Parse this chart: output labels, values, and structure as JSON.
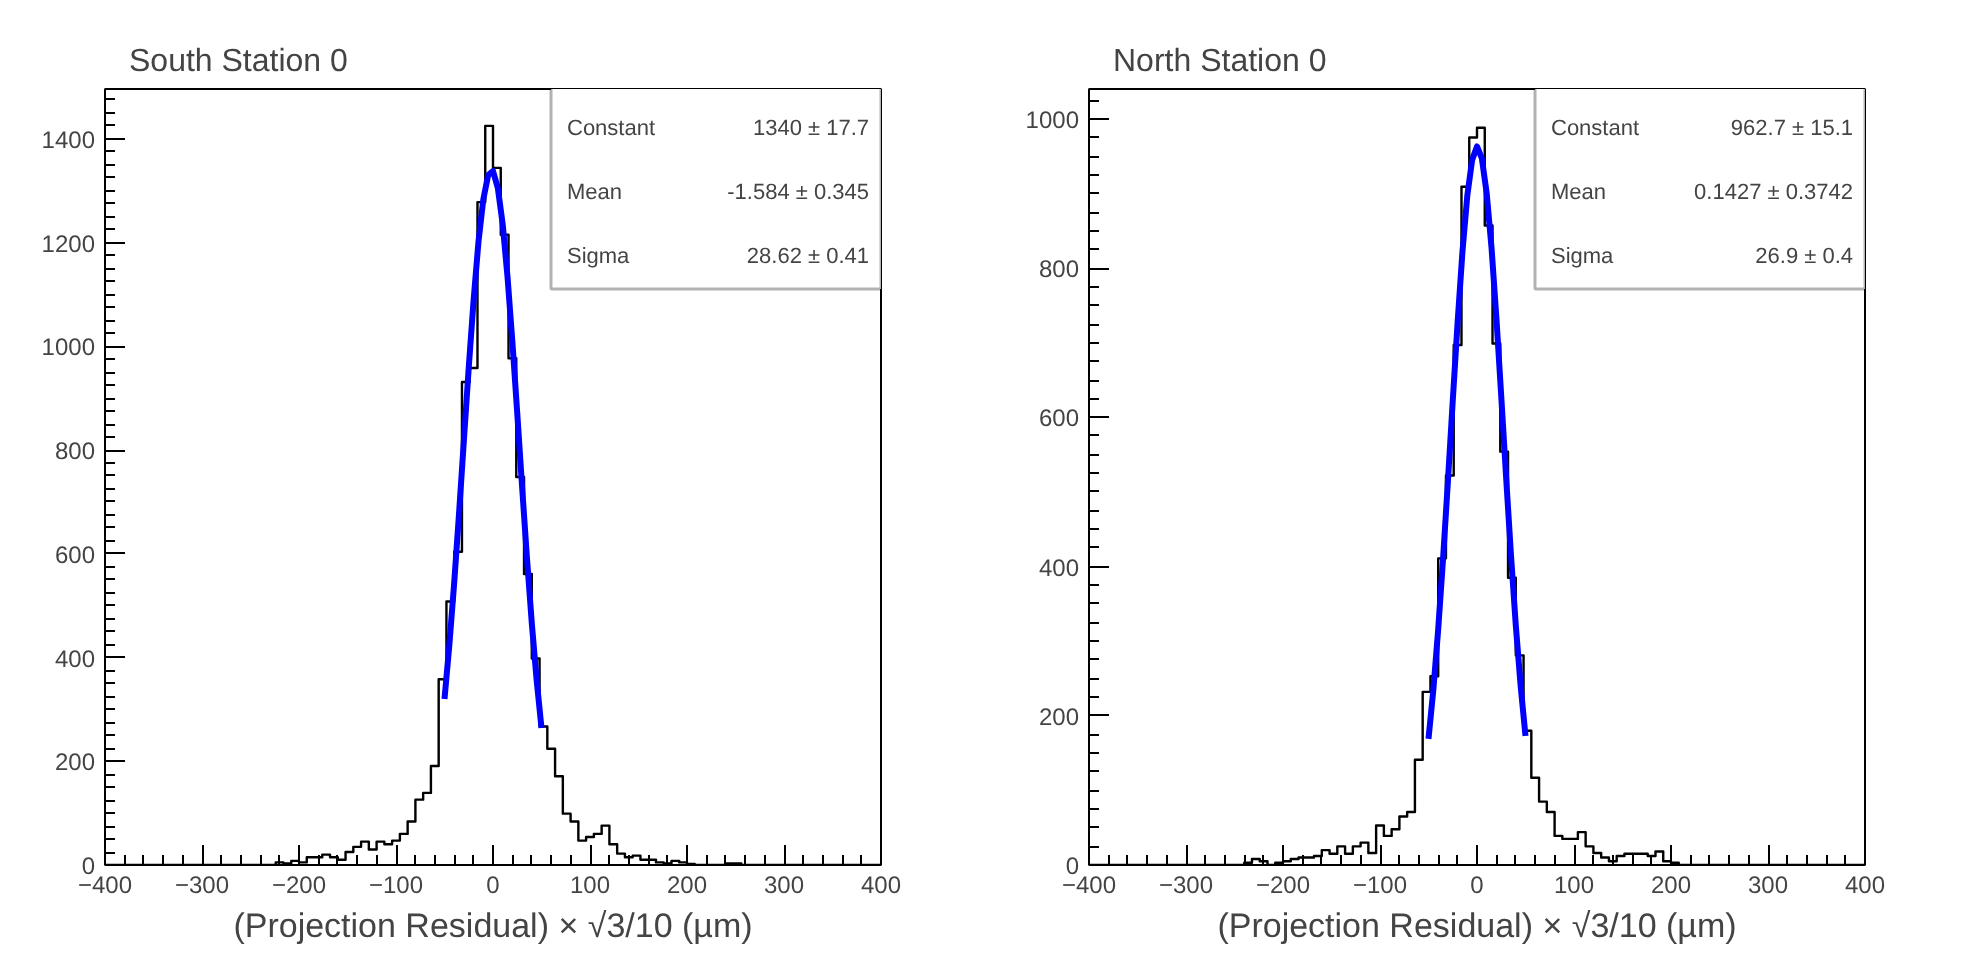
{
  "chart_data": [
    {
      "type": "histogram",
      "title": "South Station 0",
      "xlabel": "(Projection Residual) × √3/10 (µm)",
      "bins": [
        -400,
        -392,
        -384,
        -376,
        -368,
        -360,
        -352,
        -344,
        -336,
        -328,
        -320,
        -312,
        -304,
        -296,
        -288,
        -280,
        -272,
        -264,
        -256,
        -248,
        -240,
        -232,
        -224,
        -216,
        -208,
        -200,
        -192,
        -184,
        -176,
        -168,
        -160,
        -152,
        -144,
        -136,
        -128,
        -120,
        -112,
        -104,
        -96,
        -88,
        -80,
        -72,
        -64,
        -56,
        -48,
        -40,
        -32,
        -24,
        -16,
        -8,
        0,
        8,
        16,
        24,
        32,
        40,
        48,
        56,
        64,
        72,
        80,
        88,
        96,
        104,
        112,
        120,
        128,
        136,
        144,
        152,
        160,
        168,
        176,
        184,
        192,
        200,
        208,
        216,
        224,
        232,
        240,
        248,
        256,
        264,
        272,
        280,
        288,
        296,
        304,
        312,
        320,
        328,
        336,
        344,
        352,
        360,
        368,
        376,
        384,
        392,
        400
      ],
      "values": [
        0,
        0,
        0,
        0,
        0,
        0,
        0,
        0,
        0,
        0,
        0,
        0,
        0,
        0,
        0,
        0,
        0,
        0,
        0,
        0,
        0,
        0,
        5,
        3,
        8,
        5,
        15,
        15,
        20,
        15,
        10,
        25,
        35,
        45,
        30,
        45,
        40,
        47,
        60,
        84,
        126,
        139,
        191,
        358,
        508,
        604,
        931,
        958,
        1278,
        1425,
        1344,
        1215,
        977,
        748,
        561,
        398,
        267,
        224,
        171,
        99,
        84,
        47,
        54,
        60,
        76,
        40,
        22,
        15,
        18,
        10,
        10,
        5,
        3,
        8,
        5,
        2,
        0,
        0,
        0,
        0,
        3,
        3,
        0,
        0,
        0,
        0,
        0,
        0,
        0,
        0,
        0,
        0,
        0,
        0,
        0,
        0,
        0,
        0,
        0,
        0
      ],
      "color": "#000000",
      "series": [
        {
          "type": "line",
          "color": "#0000ff",
          "x": [
            -50,
            -45,
            -40,
            -35,
            -30,
            -25,
            -20,
            -15,
            -10,
            -5,
            0,
            5,
            10,
            15,
            20,
            25,
            30,
            35,
            40,
            45,
            50
          ],
          "values": [
            320,
            424,
            544,
            678,
            819,
            959,
            1089,
            1201,
            1283,
            1330,
            1338,
            1305,
            1235,
            1133,
            1008,
            871,
            729,
            592,
            466,
            356,
            264
          ]
        }
      ],
      "xlim": [
        -400,
        400
      ],
      "xticks": [
        -400,
        -300,
        -200,
        -100,
        0,
        100,
        200,
        300,
        400
      ],
      "ylim": [
        0,
        1496
      ],
      "yticks": [
        0,
        200,
        400,
        600,
        800,
        1000,
        1200,
        1400
      ],
      "grid": false,
      "annotations": [
        "Constant",
        "1340 ± 17.7",
        "Mean",
        "-1.584 ± 0.345",
        "Sigma",
        "28.62 ± 0.41"
      ]
    },
    {
      "type": "histogram",
      "title": "North Station 0",
      "xlabel": "(Projection Residual) × √3/10 (µm)",
      "bins": [
        -400,
        -392,
        -384,
        -376,
        -368,
        -360,
        -352,
        -344,
        -336,
        -328,
        -320,
        -312,
        -304,
        -296,
        -288,
        -280,
        -272,
        -264,
        -256,
        -248,
        -240,
        -232,
        -224,
        -216,
        -208,
        -200,
        -192,
        -184,
        -176,
        -168,
        -160,
        -152,
        -144,
        -136,
        -128,
        -120,
        -112,
        -104,
        -96,
        -88,
        -80,
        -72,
        -64,
        -56,
        -48,
        -40,
        -32,
        -24,
        -16,
        -8,
        0,
        8,
        16,
        24,
        32,
        40,
        48,
        56,
        64,
        72,
        80,
        88,
        96,
        104,
        112,
        120,
        128,
        136,
        144,
        152,
        160,
        168,
        176,
        184,
        192,
        200,
        208,
        216,
        224,
        232,
        240,
        248,
        256,
        264,
        272,
        280,
        288,
        296,
        304,
        312,
        320,
        328,
        336,
        344,
        352,
        360,
        368,
        376,
        384,
        392,
        400
      ],
      "values": [
        0,
        0,
        0,
        0,
        0,
        0,
        0,
        0,
        0,
        0,
        0,
        0,
        0,
        0,
        0,
        0,
        0,
        0,
        0,
        0,
        3,
        8,
        5,
        0,
        3,
        5,
        8,
        10,
        10,
        12,
        20,
        15,
        25,
        15,
        25,
        30,
        16,
        53,
        39,
        48,
        65,
        71,
        141,
        232,
        253,
        411,
        522,
        697,
        909,
        975,
        988,
        857,
        699,
        554,
        385,
        281,
        180,
        117,
        85,
        71,
        39,
        35,
        35,
        44,
        25,
        16,
        10,
        5,
        12,
        15,
        15,
        15,
        12,
        18,
        5,
        3,
        0,
        0,
        0,
        0,
        0,
        0,
        0,
        0,
        0,
        0,
        0,
        0,
        0,
        0,
        0,
        0,
        0,
        0,
        0,
        0,
        0,
        0,
        0,
        0
      ],
      "color": "#000000",
      "series": [
        {
          "type": "line",
          "color": "#0000ff",
          "x": [
            -50,
            -45,
            -40,
            -35,
            -30,
            -25,
            -20,
            -15,
            -10,
            -5,
            0,
            5,
            10,
            15,
            20,
            25,
            30,
            35,
            40,
            45,
            50
          ],
          "values": [
            169,
            235,
            316,
            410,
            514,
            622,
            727,
            822,
            897,
            945,
            963,
            947,
            900,
            827,
            733,
            628,
            520,
            416,
            321,
            240,
            173
          ]
        }
      ],
      "xlim": [
        -400,
        400
      ],
      "xticks": [
        -400,
        -300,
        -200,
        -100,
        0,
        100,
        200,
        300,
        400
      ],
      "ylim": [
        0,
        1040
      ],
      "yticks": [
        0,
        200,
        400,
        600,
        800,
        1000
      ],
      "grid": false,
      "annotations": [
        "Constant",
        "962.7 ± 15.1",
        "Mean",
        "0.1427 ± 0.3742",
        "Sigma",
        "26.9 ± 0.4"
      ]
    }
  ]
}
